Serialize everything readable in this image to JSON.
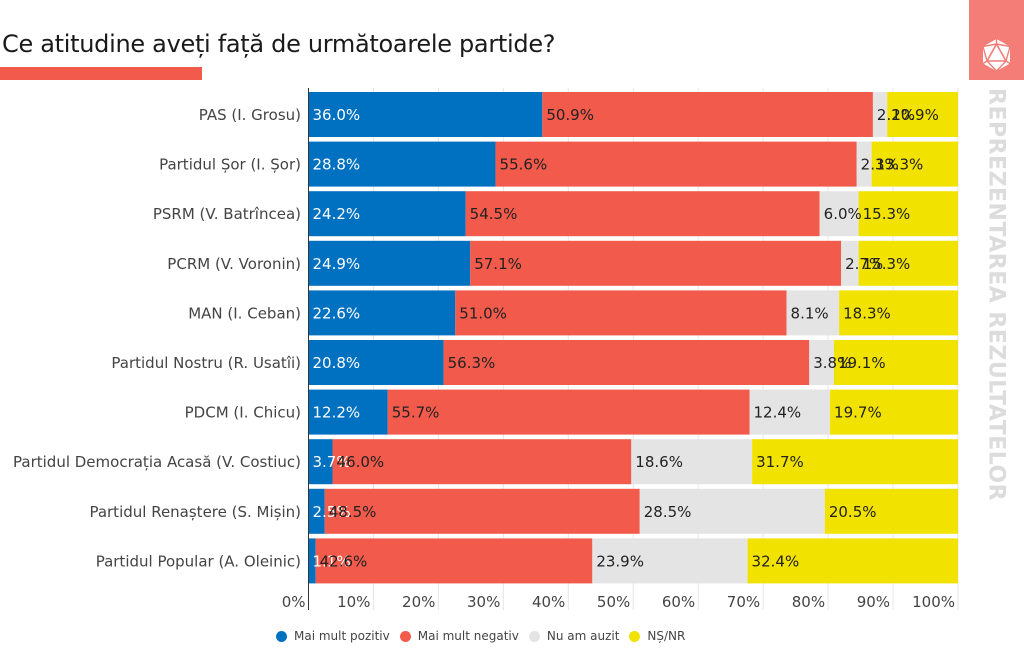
{
  "header": {
    "title": "Ce atitudine aveți față de următoarele partide?",
    "brand_vertical_text": "REPREZENTAREA REZULTATELOR",
    "brand_icon": "icosahedron-icon",
    "accent_color": "#f25a4b",
    "brand_color": "#f47d78"
  },
  "chart_data": {
    "type": "bar",
    "orientation": "horizontal",
    "stacked": true,
    "title": "Ce atitudine aveți față de următoarele partide?",
    "xlabel": "",
    "ylabel": "",
    "xlim": [
      0,
      100
    ],
    "x_ticks": [
      "0%",
      "10%",
      "20%",
      "30%",
      "40%",
      "50%",
      "60%",
      "70%",
      "80%",
      "90%",
      "100%"
    ],
    "grid": true,
    "legend_position": "bottom-left",
    "categories": [
      "PAS (I. Grosu)",
      "Partidul Șor (I. Șor)",
      "PSRM (V. Batrîncea)",
      "PCRM (V. Voronin)",
      "MAN (I. Ceban)",
      "Partidul Nostru (R. Usatîi)",
      "PDCM (I. Chicu)",
      "Partidul Democrația Acasă (V. Costiuc)",
      "Partidul Renaștere (S. Mișin)",
      "Partidul Popular (A. Oleinic)"
    ],
    "series": [
      {
        "name": "Mai mult pozitiv",
        "color": "#0070c0",
        "label_color": "#ffffff",
        "values": [
          36.0,
          28.8,
          24.2,
          24.9,
          22.6,
          20.8,
          12.2,
          3.7,
          2.5,
          1.1
        ]
      },
      {
        "name": "Mai mult negativ",
        "color": "#f25a4b",
        "label_color": "#222222",
        "values": [
          50.9,
          55.6,
          54.5,
          57.1,
          51.0,
          56.3,
          55.7,
          46.0,
          48.5,
          42.6
        ]
      },
      {
        "name": "Nu am auzit",
        "color": "#e4e4e4",
        "label_color": "#222222",
        "values": [
          2.2,
          2.3,
          6.0,
          2.7,
          8.1,
          3.8,
          12.4,
          18.6,
          28.5,
          23.9
        ]
      },
      {
        "name": "NȘ/NR",
        "color": "#f2e200",
        "label_color": "#222222",
        "values": [
          10.9,
          13.3,
          15.3,
          15.3,
          18.3,
          19.1,
          19.7,
          31.7,
          20.5,
          32.4
        ]
      }
    ]
  }
}
